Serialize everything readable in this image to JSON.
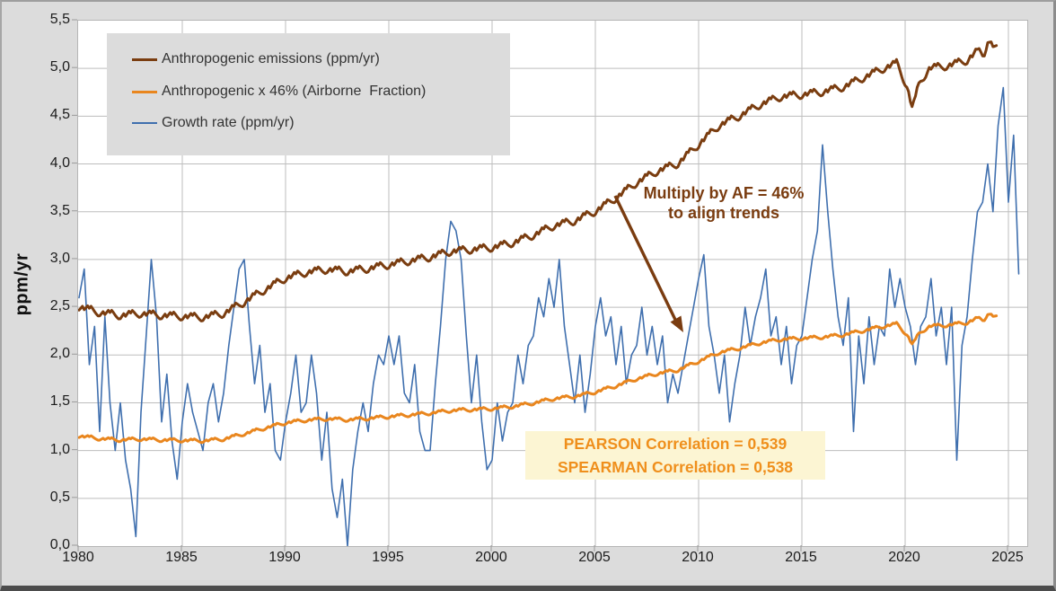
{
  "colors": {
    "frame_bg": "#dcdcdc",
    "plot_bg": "#ffffff",
    "grid": "#bdbdbd",
    "tick": "#9b9b9b",
    "axis_text": "#1c1c1c",
    "emissions_line": "#7a3d10",
    "airborne_line": "#e9861e",
    "growth_line": "#3f6fae",
    "note_text": "#7a3c10",
    "corr_text": "#ef8f1c",
    "corr_bg": "#fcf5d3",
    "legend_bg": "#dcdcdc",
    "legend_text": "#333333"
  },
  "legend": {
    "items": [
      {
        "label": "Anthropogenic emissions (ppm/yr)",
        "color": "#7a3d10"
      },
      {
        "label": "Anthropogenic x 46% (Airborne  Fraction)",
        "color": "#e9861e"
      },
      {
        "label": "Growth rate (ppm/yr)",
        "color": "#3f6fae"
      }
    ]
  },
  "chart_data": {
    "type": "line",
    "title": "",
    "xlabel": "",
    "ylabel": "ppm/yr",
    "xlim": [
      1980,
      2025.9
    ],
    "ylim": [
      0,
      5.5
    ],
    "grid": true,
    "decimal_style": "comma",
    "legend_position": "top-left",
    "x_ticks": [
      1980,
      1985,
      1990,
      1995,
      2000,
      2005,
      2010,
      2015,
      2020,
      2025
    ],
    "x_tick_labels": [
      "1980",
      "1985",
      "1990",
      "1995",
      "2000",
      "2005",
      "2010",
      "2015",
      "2020",
      "2025"
    ],
    "y_ticks": [
      0,
      0.5,
      1,
      1.5,
      2,
      2.5,
      3,
      3.5,
      4,
      4.5,
      5,
      5.5
    ],
    "y_tick_labels": [
      "0,0",
      "0,5",
      "1,0",
      "1,5",
      "2,0",
      "2,5",
      "3,0",
      "3,5",
      "4,0",
      "4,5",
      "5,0",
      "5,5"
    ],
    "annotations": {
      "arrow_label_line1": "Multiply by AF = 46%",
      "arrow_label_line2": "to align trends",
      "pearson": "PEARSON Correlation = 0,539",
      "spearman": "SPEARMAN Correlation = 0,538"
    },
    "series": [
      {
        "name": "Anthropogenic emissions (ppm/yr)",
        "color": "#7a3d10",
        "width": 3,
        "x": [
          1980,
          1981,
          1982,
          1983,
          1984,
          1985,
          1986,
          1987,
          1988,
          1989,
          1990,
          1991,
          1992,
          1993,
          1994,
          1995,
          1996,
          1997,
          1998,
          1999,
          2000,
          2001,
          2002,
          2003,
          2004,
          2005,
          2006,
          2007,
          2008,
          2009,
          2010,
          2011,
          2012,
          2013,
          2014,
          2015,
          2016,
          2017,
          2018,
          2019,
          2019.6,
          2020.1,
          2020.35,
          2020.7,
          2021.2,
          2022,
          2023,
          2023.5,
          2023.8,
          2024.0,
          2024.4
        ],
        "values": [
          2.5,
          2.44,
          2.41,
          2.43,
          2.41,
          2.4,
          2.39,
          2.43,
          2.55,
          2.68,
          2.8,
          2.86,
          2.89,
          2.87,
          2.9,
          2.94,
          2.98,
          3.02,
          3.08,
          3.1,
          3.12,
          3.17,
          3.25,
          3.35,
          3.4,
          3.5,
          3.64,
          3.8,
          3.92,
          4.0,
          4.2,
          4.4,
          4.5,
          4.62,
          4.7,
          4.72,
          4.75,
          4.8,
          4.9,
          5.0,
          5.05,
          4.8,
          4.57,
          4.85,
          5.0,
          5.02,
          5.08,
          5.18,
          5.12,
          5.3,
          5.2
        ],
        "seasonal_pattern": [
          -0.03,
          -0.005,
          0.02,
          -0.01,
          0.015,
          0.04,
          0.02,
          0.045,
          0.025,
          0.0,
          -0.02,
          -0.035
        ]
      },
      {
        "name": "Anthropogenic x 46% (Airborne  Fraction)",
        "color": "#e9861e",
        "width": 3,
        "derived_from": "Anthropogenic emissions (ppm/yr)",
        "factor": 0.46
      },
      {
        "name": "Growth rate (ppm/yr)",
        "color": "#3f6fae",
        "width": 1.6,
        "x_start": 1980,
        "x_step": 0.25,
        "values": [
          2.6,
          2.9,
          1.9,
          2.3,
          1.2,
          2.4,
          1.5,
          1.0,
          1.5,
          0.9,
          0.6,
          0.1,
          1.4,
          2.2,
          3.0,
          2.4,
          1.3,
          1.8,
          1.1,
          0.7,
          1.3,
          1.7,
          1.4,
          1.2,
          1.0,
          1.5,
          1.7,
          1.3,
          1.6,
          2.1,
          2.5,
          2.9,
          3.0,
          2.3,
          1.7,
          2.1,
          1.4,
          1.7,
          1.0,
          0.9,
          1.3,
          1.6,
          2.0,
          1.4,
          1.5,
          2.0,
          1.6,
          0.9,
          1.4,
          0.6,
          0.3,
          0.7,
          0.0,
          0.8,
          1.2,
          1.5,
          1.2,
          1.7,
          2.0,
          1.9,
          2.2,
          1.9,
          2.2,
          1.6,
          1.5,
          1.9,
          1.2,
          1.0,
          1.0,
          1.7,
          2.3,
          3.0,
          3.4,
          3.3,
          3.0,
          2.2,
          1.5,
          2.0,
          1.3,
          0.8,
          0.9,
          1.5,
          1.1,
          1.4,
          1.5,
          2.0,
          1.7,
          2.1,
          2.2,
          2.6,
          2.4,
          2.8,
          2.5,
          3.0,
          2.3,
          1.9,
          1.5,
          2.0,
          1.4,
          1.8,
          2.3,
          2.6,
          2.2,
          2.4,
          1.9,
          2.3,
          1.7,
          2.0,
          2.1,
          2.5,
          2.0,
          2.3,
          1.9,
          2.2,
          1.5,
          1.8,
          1.6,
          1.9,
          2.2,
          2.5,
          2.8,
          3.05,
          2.3,
          2.0,
          1.6,
          2.0,
          1.3,
          1.7,
          2.0,
          2.5,
          2.1,
          2.4,
          2.6,
          2.9,
          2.2,
          2.4,
          1.9,
          2.3,
          1.7,
          2.1,
          2.2,
          2.6,
          3.0,
          3.3,
          4.2,
          3.5,
          2.9,
          2.4,
          2.1,
          2.6,
          1.2,
          2.2,
          1.7,
          2.4,
          1.9,
          2.3,
          2.2,
          2.9,
          2.5,
          2.8,
          2.5,
          2.3,
          1.9,
          2.3,
          2.4,
          2.8,
          2.2,
          2.5,
          1.9,
          2.5,
          0.9,
          2.1,
          2.4,
          3.0,
          3.5,
          3.6,
          4.0,
          3.5,
          4.4,
          4.8,
          3.6,
          4.3,
          2.85
        ]
      }
    ]
  }
}
